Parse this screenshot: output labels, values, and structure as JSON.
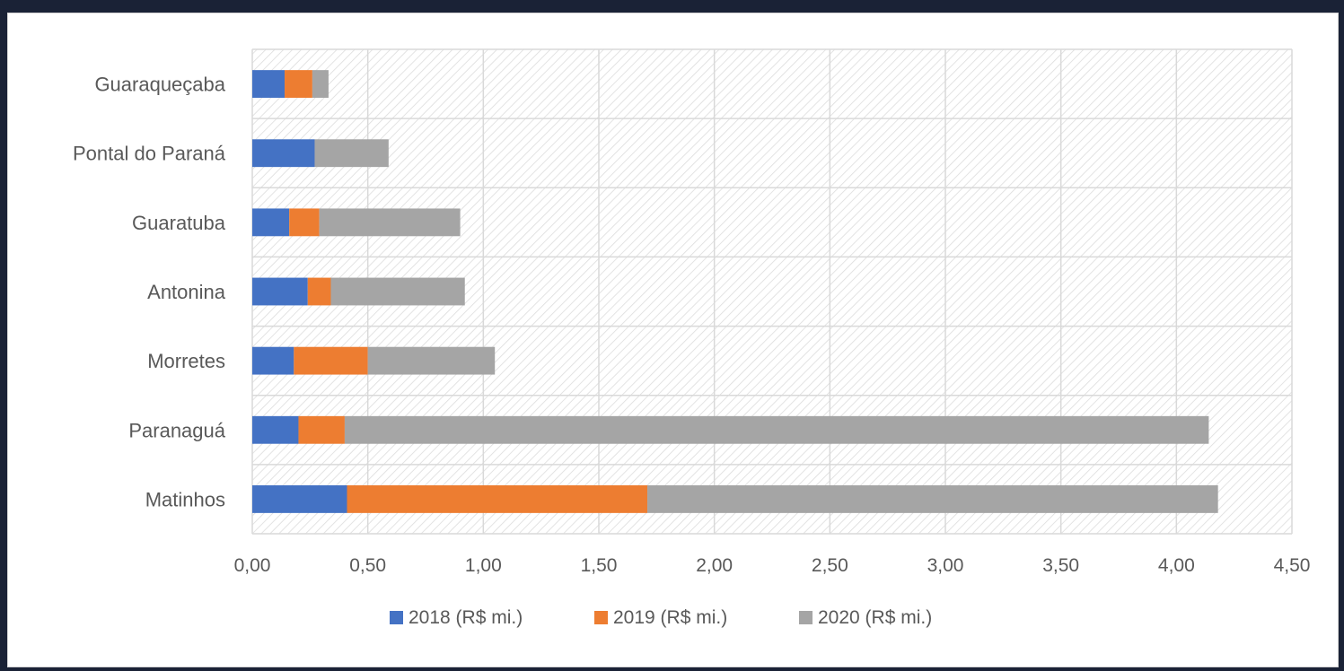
{
  "chart_data": {
    "type": "bar",
    "orientation": "horizontal",
    "stacked": true,
    "categories": [
      "Matinhos",
      "Paranaguá",
      "Morretes",
      "Antonina",
      "Guaratuba",
      "Pontal do Paraná",
      "Guaraqueçaba"
    ],
    "series": [
      {
        "name": "2018 (R$ mi.)",
        "color": "#4472c4",
        "values": [
          0.41,
          0.2,
          0.18,
          0.24,
          0.16,
          0.27,
          0.14
        ]
      },
      {
        "name": "2019 (R$ mi.)",
        "color": "#ed7d31",
        "values": [
          1.3,
          0.2,
          0.32,
          0.1,
          0.13,
          0.0,
          0.12
        ]
      },
      {
        "name": "2020 (R$ mi.)",
        "color": "#a5a5a5",
        "values": [
          2.47,
          3.74,
          0.55,
          0.58,
          0.61,
          0.32,
          0.07
        ]
      }
    ],
    "xlim": [
      0,
      4.5
    ],
    "x_ticks": [
      0,
      0.5,
      1.0,
      1.5,
      2.0,
      2.5,
      3.0,
      3.5,
      4.0,
      4.5
    ],
    "x_tick_labels": [
      "0,00",
      "0,50",
      "1,00",
      "1,50",
      "2,00",
      "2,50",
      "3,00",
      "3,50",
      "4,00",
      "4,50"
    ],
    "grid": true,
    "legend_position": "bottom",
    "plot_background": "hatched"
  }
}
